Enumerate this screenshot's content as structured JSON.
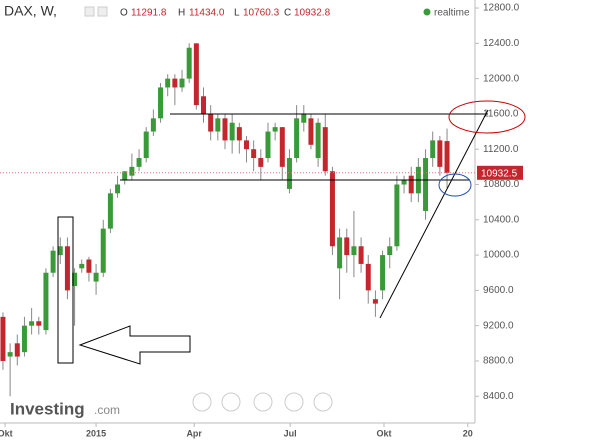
{
  "chart_data": {
    "type": "candlestick",
    "header": {
      "symbol": "DAX, W,",
      "o": "O",
      "open": "11291.8",
      "h": "H",
      "high": "11434.0",
      "l": "L",
      "low": "10760.3",
      "c": "C",
      "close": "10932.8",
      "realtime": "realtime"
    },
    "brand": {
      "name": "Investing",
      "suffix": ".com"
    },
    "last_price_label": "10932.5",
    "last_price": 10932.5,
    "up_color": "#3a9a3a",
    "down_color": "#c3262c",
    "x": [
      0,
      1,
      2,
      3,
      4,
      5,
      6,
      7,
      8,
      9,
      10,
      11,
      12,
      13,
      14,
      15,
      16,
      17,
      18,
      19,
      20,
      21,
      22,
      23,
      24,
      25,
      26,
      27,
      28,
      29,
      30,
      31,
      32,
      33,
      34,
      35,
      36,
      37,
      38,
      39,
      40,
      41,
      42,
      43,
      44,
      45,
      46,
      47,
      48,
      49,
      50,
      51,
      52,
      53,
      54,
      55,
      56,
      57,
      58,
      59,
      60,
      61,
      62
    ],
    "open": [
      9300,
      8850,
      9000,
      8900,
      9200,
      9250,
      9150,
      9800,
      10000,
      10100,
      9650,
      9850,
      9950,
      9700,
      9800,
      10300,
      10700,
      10850,
      10900,
      11000,
      11100,
      11400,
      11550,
      11900,
      12000,
      11900,
      12000,
      12400,
      11800,
      11600,
      11400,
      11550,
      11300,
      11450,
      11300,
      11200,
      11100,
      11100,
      11400,
      11450,
      10750,
      11100,
      11500,
      11550,
      11100,
      11450,
      10950,
      9850,
      10200,
      10000,
      10100,
      9900,
      9500,
      9600,
      10000,
      10100,
      10800,
      10900,
      10700,
      10500,
      11100,
      11300,
      11291.8
    ],
    "high": [
      9350,
      9000,
      9100,
      9300,
      9400,
      9300,
      9850,
      10100,
      10200,
      10200,
      9850,
      9950,
      9980,
      9900,
      10400,
      10750,
      10900,
      10950,
      11150,
      11200,
      11450,
      11650,
      11950,
      12050,
      12050,
      12100,
      12400,
      12400,
      11900,
      11700,
      11600,
      11600,
      11600,
      11500,
      11350,
      11300,
      11200,
      11500,
      11500,
      11450,
      11200,
      11700,
      11700,
      11600,
      11550,
      11600,
      11000,
      10300,
      10300,
      10500,
      10200,
      10000,
      9600,
      10050,
      10200,
      10900,
      10900,
      11000,
      11100,
      11200,
      11400,
      11350,
      11434.0
    ],
    "low": [
      8700,
      8400,
      8750,
      8850,
      9100,
      9100,
      9100,
      9750,
      9900,
      9500,
      9200,
      9800,
      9700,
      9550,
      9750,
      10250,
      10650,
      10800,
      10850,
      10950,
      11050,
      11350,
      11500,
      11800,
      11700,
      11850,
      11950,
      11650,
      11500,
      11300,
      11300,
      11200,
      11150,
      11150,
      11050,
      10950,
      10850,
      11050,
      11300,
      10850,
      10700,
      11050,
      11400,
      11200,
      11000,
      10900,
      10000,
      9500,
      9800,
      9750,
      9800,
      9450,
      9300,
      9500,
      9850,
      10050,
      10700,
      10600,
      10600,
      10400,
      11000,
      10900,
      10760.3
    ],
    "close": [
      8800,
      8900,
      8850,
      9200,
      9250,
      9200,
      9800,
      10050,
      10100,
      9600,
      9800,
      9900,
      9800,
      9800,
      10300,
      10700,
      10800,
      10950,
      11000,
      11100,
      11400,
      11550,
      11900,
      12000,
      11900,
      12000,
      12350,
      11700,
      11600,
      11400,
      11550,
      11300,
      11500,
      11300,
      11200,
      11100,
      11000,
      11400,
      11450,
      11000,
      11100,
      11550,
      11600,
      11250,
      11500,
      10950,
      10100,
      10200,
      10000,
      10100,
      9900,
      9600,
      9450,
      10000,
      10100,
      10800,
      10850,
      10700,
      11000,
      11100,
      11300,
      11000,
      10932.8
    ],
    "xlim": [
      -0.4,
      65.5
    ],
    "xticks": [
      {
        "value": 0.3,
        "label": "Okt"
      },
      {
        "value": 13,
        "label": "2015"
      },
      {
        "value": 26.7,
        "label": "Apr"
      },
      {
        "value": 40.1,
        "label": "Jul"
      },
      {
        "value": 53.2,
        "label": "Okt"
      },
      {
        "value": 64.9,
        "label": "20"
      }
    ],
    "ylim": [
      8097,
      12891
    ],
    "yticks": [
      {
        "value": 12800,
        "label": "12800.0"
      },
      {
        "value": 12400,
        "label": "12400.0"
      },
      {
        "value": 12000,
        "label": "12000.0"
      },
      {
        "value": 11600,
        "label": "11600.0"
      },
      {
        "value": 11200,
        "label": "11200.0"
      },
      {
        "value": 10800,
        "label": "10800.0"
      },
      {
        "value": 10400,
        "label": "10400.0"
      },
      {
        "value": 10000,
        "label": "10000.0"
      },
      {
        "value": 9600,
        "label": "9600.0"
      },
      {
        "value": 9200,
        "label": "9200.0"
      },
      {
        "value": 8800,
        "label": "8800.0"
      },
      {
        "value": 8400,
        "label": "8400.0"
      }
    ]
  }
}
